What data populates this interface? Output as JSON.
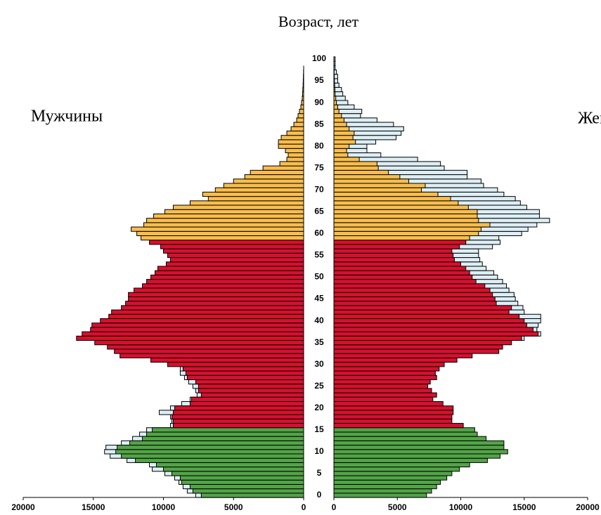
{
  "chart_data": {
    "type": "pyramid",
    "title": "Возраст, лет",
    "categories": [
      0,
      null,
      null,
      null,
      null,
      5,
      null,
      null,
      null,
      null,
      10,
      null,
      null,
      null,
      null,
      15,
      null,
      null,
      null,
      null,
      20,
      null,
      null,
      null,
      null,
      25,
      null,
      null,
      null,
      null,
      30,
      null,
      null,
      null,
      null,
      35,
      null,
      null,
      null,
      null,
      40,
      null,
      null,
      null,
      null,
      45,
      null,
      null,
      null,
      null,
      50,
      null,
      null,
      null,
      null,
      55,
      null,
      null,
      null,
      null,
      60,
      null,
      null,
      null,
      null,
      65,
      null,
      null,
      null,
      null,
      70,
      null,
      null,
      null,
      null,
      75,
      null,
      null,
      null,
      null,
      80,
      null,
      null,
      null,
      null,
      85,
      null,
      null,
      null,
      null,
      90,
      null,
      null,
      null,
      null,
      95,
      null,
      null,
      null,
      null,
      100
    ],
    "age_groups": [
      {
        "start": 0,
        "color": "#52a447"
      },
      {
        "start": 16,
        "color": "#d6102e"
      },
      {
        "start": 59,
        "color": "#f8bd4c"
      }
    ],
    "outline_color": "#ddeef5",
    "xlim": [
      0,
      20000
    ],
    "xticks": [
      0,
      5000,
      10000,
      15000,
      20000
    ],
    "series": [
      {
        "name": "Мужчины",
        "side": "left",
        "values": [
          7300,
          7900,
          8100,
          8700,
          8800,
          9400,
          10000,
          10500,
          12000,
          13000,
          13400,
          13300,
          12400,
          11500,
          11200,
          10800,
          9300,
          9300,
          9400,
          9300,
          9200,
          8100,
          8000,
          7300,
          7500,
          7500,
          7700,
          8300,
          8400,
          8600,
          9700,
          10900,
          13100,
          13500,
          14000,
          14900,
          16200,
          15800,
          15200,
          15100,
          14500,
          13900,
          13700,
          13000,
          12700,
          12500,
          12500,
          12100,
          11500,
          11200,
          10900,
          10600,
          10400,
          9800,
          9500,
          9700,
          10000,
          10200,
          11000,
          11600,
          11900,
          12300,
          11400,
          11200,
          10700,
          9900,
          9300,
          8100,
          6800,
          7200,
          6300,
          5700,
          5000,
          4200,
          3800,
          2900,
          1700,
          1200,
          1100,
          1300,
          1800,
          1800,
          1600,
          1200,
          900,
          700,
          500,
          400,
          300,
          200,
          150,
          100,
          80,
          60,
          40,
          30,
          20,
          10,
          null,
          null,
          null
        ],
        "outline_values": [
          7700,
          8300,
          8600,
          8900,
          9200,
          9900,
          10800,
          11000,
          12600,
          13800,
          14200,
          14100,
          13000,
          12200,
          11700,
          11200,
          9500,
          9400,
          9500,
          10300,
          9500,
          8700,
          8100,
          7600,
          7700,
          7900,
          8200,
          8500,
          8800,
          8800,
          null,
          null,
          null,
          null,
          null,
          null,
          null,
          null,
          null,
          null,
          null,
          null,
          null,
          null,
          null,
          null,
          null,
          null,
          null,
          null,
          null,
          null,
          null,
          null,
          null,
          null,
          null,
          null,
          null,
          null,
          null,
          null,
          null,
          null,
          null,
          null,
          null,
          null,
          null,
          null,
          null,
          null,
          null,
          null,
          null,
          null,
          null,
          null,
          null,
          null,
          null,
          null,
          null,
          null,
          null,
          null,
          null,
          null,
          null,
          null,
          null,
          null,
          null,
          null,
          null,
          null,
          null,
          null,
          null,
          null,
          null
        ]
      },
      {
        "name": "Женщины",
        "side": "right",
        "values": [
          7300,
          7700,
          8100,
          8400,
          8900,
          9300,
          9900,
          10700,
          12100,
          13100,
          13700,
          13400,
          13400,
          12000,
          11300,
          11100,
          10200,
          9300,
          9300,
          9400,
          9400,
          8600,
          7800,
          8100,
          7700,
          7400,
          7600,
          8100,
          8000,
          8300,
          8700,
          9700,
          10900,
          13000,
          13300,
          14000,
          14800,
          16100,
          15700,
          15200,
          15000,
          14600,
          13800,
          14000,
          12800,
          12700,
          12500,
          12300,
          11900,
          11200,
          10900,
          10700,
          10400,
          10000,
          9500,
          9400,
          9300,
          9900,
          10400,
          10700,
          11400,
          11600,
          12300,
          11400,
          11300,
          11300,
          10600,
          9800,
          9200,
          8200,
          6900,
          7200,
          5900,
          5200,
          4300,
          3500,
          3400,
          2000,
          1100,
          1000,
          1200,
          1700,
          1500,
          1600,
          1200,
          1000,
          800,
          600,
          400,
          300,
          200,
          150,
          100,
          80,
          60,
          40,
          30,
          20,
          10,
          10,
          10
        ],
        "outline_values": [
          null,
          null,
          null,
          null,
          null,
          null,
          null,
          null,
          null,
          null,
          null,
          null,
          null,
          null,
          null,
          null,
          null,
          null,
          null,
          null,
          null,
          null,
          null,
          null,
          null,
          null,
          null,
          null,
          null,
          null,
          null,
          null,
          null,
          null,
          null,
          null,
          15000,
          16300,
          16000,
          16100,
          16300,
          16300,
          15000,
          14900,
          14500,
          14300,
          14200,
          13800,
          13600,
          13300,
          12900,
          12600,
          12000,
          11700,
          11500,
          11400,
          11400,
          12500,
          13100,
          13000,
          14800,
          15300,
          16000,
          17000,
          16200,
          16200,
          15200,
          14700,
          14300,
          13400,
          12900,
          11800,
          11600,
          10500,
          10500,
          8700,
          8400,
          6600,
          3700,
          2600,
          2600,
          3300,
          4900,
          5300,
          5500,
          4700,
          3400,
          2100,
          2200,
          1600,
          1100,
          900,
          700,
          600,
          400,
          300,
          300,
          200,
          100,
          100,
          100
        ]
      }
    ]
  }
}
